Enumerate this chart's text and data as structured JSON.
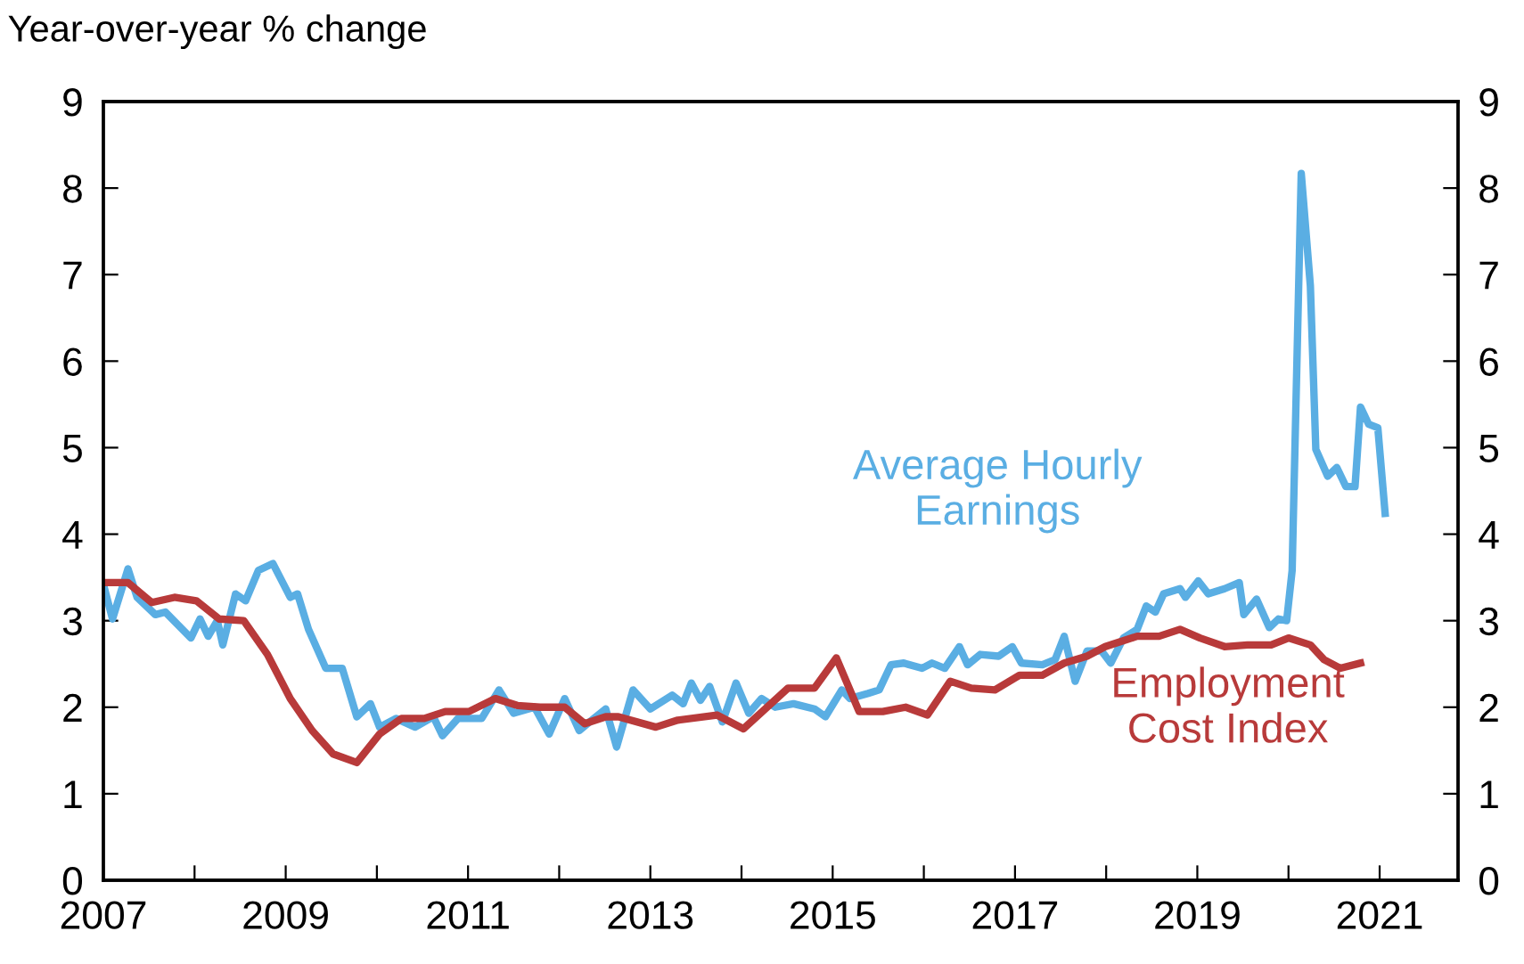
{
  "chart_data": {
    "type": "line",
    "ylabel": "Year-over-year % change",
    "xlim": [
      2007,
      2021.86
    ],
    "xticks": [
      2007,
      {
        "value": 2008,
        "label": null
      },
      2009,
      {
        "value": 2010,
        "label": null
      },
      2011,
      {
        "value": 2012,
        "label": null
      },
      2013,
      {
        "value": 2014,
        "label": null
      },
      2015,
      {
        "value": 2016,
        "label": null
      },
      2017,
      {
        "value": 2018,
        "label": null
      },
      2019,
      {
        "value": 2020,
        "label": null
      },
      2021
    ],
    "ylim": [
      0,
      9
    ],
    "yticks": [
      0,
      1,
      2,
      3,
      4,
      5,
      6,
      7,
      8,
      9
    ],
    "y2lim": [
      0,
      9
    ],
    "y2ticks": [
      0,
      1,
      2,
      3,
      4,
      5,
      6,
      7,
      8,
      9
    ],
    "grid": false,
    "legend": false,
    "marker": "none",
    "line_style": "solid",
    "series": [
      {
        "name": "Average Hourly\nEarnings",
        "color": "#5aaee3",
        "x": [
          2007.0,
          2007.1,
          2007.27,
          2007.37,
          2007.57,
          2007.68,
          2007.96,
          2008.06,
          2008.15,
          2008.25,
          2008.31,
          2008.45,
          2008.56,
          2008.7,
          2008.86,
          2009.05,
          2009.13,
          2009.25,
          2009.44,
          2009.62,
          2009.78,
          2009.93,
          2010.03,
          2010.21,
          2010.42,
          2010.62,
          2010.72,
          2010.89,
          2011.15,
          2011.34,
          2011.5,
          2011.73,
          2011.89,
          2012.06,
          2012.22,
          2012.38,
          2012.51,
          2012.63,
          2012.81,
          2013.0,
          2013.24,
          2013.36,
          2013.45,
          2013.55,
          2013.65,
          2013.79,
          2013.94,
          2014.08,
          2014.22,
          2014.37,
          2014.57,
          2014.8,
          2014.92,
          2015.1,
          2015.19,
          2015.39,
          2015.51,
          2015.64,
          2015.78,
          2015.98,
          2016.09,
          2016.23,
          2016.39,
          2016.48,
          2016.62,
          2016.82,
          2016.97,
          2017.07,
          2017.3,
          2017.44,
          2017.54,
          2017.66,
          2017.79,
          2017.95,
          2018.05,
          2018.19,
          2018.34,
          2018.44,
          2018.54,
          2018.63,
          2018.81,
          2018.87,
          2019.01,
          2019.12,
          2019.3,
          2019.46,
          2019.51,
          2019.65,
          2019.79,
          2019.89,
          2019.98,
          2020.04,
          2020.14,
          2020.24,
          2020.3,
          2020.43,
          2020.53,
          2020.63,
          2020.73,
          2020.79,
          2020.88,
          2020.98,
          2021.06
        ],
        "values": [
          3.42,
          3.02,
          3.6,
          3.27,
          3.07,
          3.1,
          2.8,
          3.02,
          2.82,
          3.0,
          2.72,
          3.31,
          3.23,
          3.58,
          3.66,
          3.27,
          3.31,
          2.9,
          2.45,
          2.45,
          1.89,
          2.04,
          1.77,
          1.87,
          1.77,
          1.89,
          1.67,
          1.87,
          1.87,
          2.2,
          1.93,
          2.0,
          1.69,
          2.1,
          1.73,
          1.87,
          1.98,
          1.54,
          2.2,
          1.98,
          2.14,
          2.04,
          2.28,
          2.08,
          2.24,
          1.83,
          2.28,
          1.93,
          2.1,
          2.0,
          2.04,
          1.98,
          1.89,
          2.2,
          2.1,
          2.16,
          2.2,
          2.49,
          2.51,
          2.45,
          2.51,
          2.45,
          2.7,
          2.49,
          2.61,
          2.59,
          2.7,
          2.51,
          2.49,
          2.55,
          2.82,
          2.3,
          2.65,
          2.65,
          2.51,
          2.8,
          2.9,
          3.17,
          3.1,
          3.31,
          3.37,
          3.27,
          3.46,
          3.31,
          3.37,
          3.44,
          3.07,
          3.25,
          2.92,
          3.02,
          3.0,
          3.58,
          8.17,
          6.87,
          4.98,
          4.67,
          4.77,
          4.55,
          4.55,
          5.47,
          5.27,
          5.23,
          4.24
        ]
      },
      {
        "name": "Employment\nCost Index",
        "color": "#b83a3a",
        "x": [
          2007.0,
          2007.27,
          2007.53,
          2007.78,
          2008.02,
          2008.27,
          2008.54,
          2008.8,
          2009.05,
          2009.29,
          2009.52,
          2009.78,
          2010.03,
          2010.27,
          2010.52,
          2010.75,
          2011.01,
          2011.3,
          2011.54,
          2011.79,
          2012.06,
          2012.28,
          2012.51,
          2012.65,
          2013.06,
          2013.3,
          2013.73,
          2014.02,
          2014.51,
          2014.8,
          2015.04,
          2015.29,
          2015.55,
          2015.8,
          2016.04,
          2016.29,
          2016.52,
          2016.78,
          2017.05,
          2017.3,
          2017.54,
          2017.79,
          2017.99,
          2018.34,
          2018.58,
          2018.81,
          2019.03,
          2019.3,
          2019.55,
          2019.81,
          2020.0,
          2020.24,
          2020.39,
          2020.57,
          2020.79
        ],
        "values": [
          3.44,
          3.44,
          3.21,
          3.27,
          3.23,
          3.02,
          3.0,
          2.61,
          2.1,
          1.73,
          1.46,
          1.36,
          1.69,
          1.87,
          1.87,
          1.95,
          1.95,
          2.1,
          2.02,
          2.0,
          2.0,
          1.81,
          1.89,
          1.89,
          1.77,
          1.85,
          1.91,
          1.75,
          2.22,
          2.22,
          2.57,
          1.95,
          1.95,
          2.0,
          1.91,
          2.3,
          2.22,
          2.2,
          2.37,
          2.37,
          2.51,
          2.59,
          2.7,
          2.82,
          2.82,
          2.9,
          2.8,
          2.7,
          2.72,
          2.72,
          2.8,
          2.72,
          2.55,
          2.45,
          2.51
        ]
      }
    ]
  }
}
